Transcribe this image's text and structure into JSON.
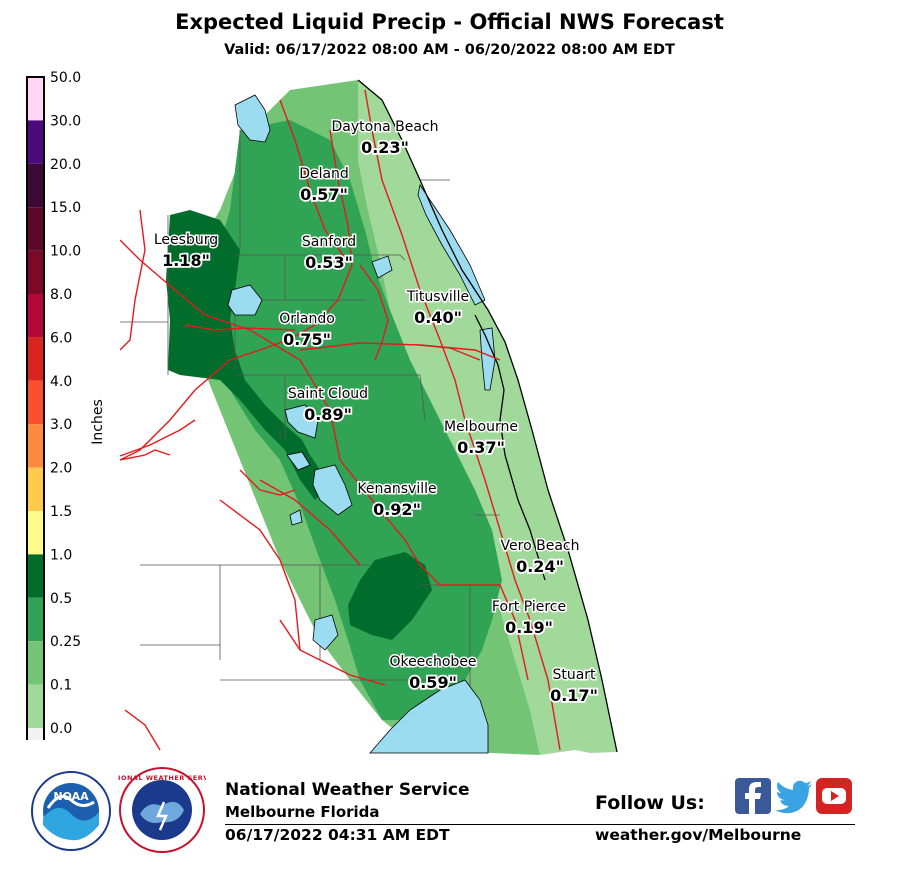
{
  "header": {
    "title": "Expected Liquid Precip - Official NWS Forecast",
    "valid": "Valid: 06/17/2022 08:00 AM - 06/20/2022 08:00 AM EDT"
  },
  "legend": {
    "unit_label": "Inches",
    "bins": [
      {
        "label": "50.0",
        "color": "#ffd6f6"
      },
      {
        "label": "30.0",
        "color": "#4b0b7c"
      },
      {
        "label": "20.0",
        "color": "#3d0a38"
      },
      {
        "label": "15.0",
        "color": "#5c0a2c"
      },
      {
        "label": "10.0",
        "color": "#7b0a28"
      },
      {
        "label": "8.0",
        "color": "#b3083a"
      },
      {
        "label": "6.0",
        "color": "#d9251f"
      },
      {
        "label": "4.0",
        "color": "#fb4f32"
      },
      {
        "label": "3.0",
        "color": "#fc8a3e"
      },
      {
        "label": "2.0",
        "color": "#feca4c"
      },
      {
        "label": "1.5",
        "color": "#fefa8c"
      },
      {
        "label": "1.0",
        "color": "#006d2c"
      },
      {
        "label": "0.5",
        "color": "#31a354"
      },
      {
        "label": "0.25",
        "color": "#74c476"
      },
      {
        "label": "0.1",
        "color": "#a1d99b"
      },
      {
        "label": "0.0",
        "color": "#f2f2f2"
      }
    ]
  },
  "map": {
    "colors": {
      "water": "#9cdcf0",
      "roads": "#e41a1c",
      "boundaries": "#555555",
      "light_green": "#a1d99b",
      "medium_light_green": "#74c476",
      "medium_green": "#31a354",
      "dark_green": "#006d2c"
    },
    "cities": [
      {
        "name": "Daytona Beach",
        "value": "0.23\""
      },
      {
        "name": "Deland",
        "value": "0.57\""
      },
      {
        "name": "Leesburg",
        "value": "1.18\""
      },
      {
        "name": "Sanford",
        "value": "0.53\""
      },
      {
        "name": "Titusville",
        "value": "0.40\""
      },
      {
        "name": "Orlando",
        "value": "0.75\""
      },
      {
        "name": "Saint Cloud",
        "value": "0.89\""
      },
      {
        "name": "Melbourne",
        "value": "0.37\""
      },
      {
        "name": "Kenansville",
        "value": "0.92\""
      },
      {
        "name": "Vero Beach",
        "value": "0.24\""
      },
      {
        "name": "Fort Pierce",
        "value": "0.19\""
      },
      {
        "name": "Okeechobee",
        "value": "0.59\""
      },
      {
        "name": "Stuart",
        "value": "0.17\""
      }
    ]
  },
  "footer": {
    "office_line1": "National Weather Service",
    "office_line2": "Melbourne Florida",
    "issued": "06/17/2022 04:31 AM EDT",
    "follow_label": "Follow Us:",
    "website": "weather.gov/Melbourne",
    "noaa_logo_text": "NOAA",
    "nws_seal_text": "NATIONAL WEATHER SERVICE",
    "social_icons": [
      "facebook-icon",
      "twitter-icon",
      "youtube-icon"
    ]
  }
}
